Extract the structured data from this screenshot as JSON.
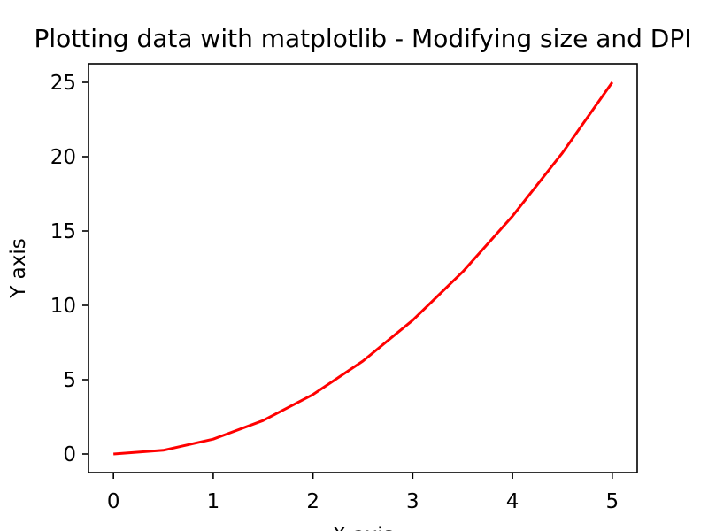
{
  "chart_data": {
    "type": "line",
    "title": "Plotting data with matplotlib - Modifying size and DPI",
    "xlabel": "X axis",
    "ylabel": "Y axis",
    "xlim": [
      -0.25,
      5.25
    ],
    "ylim": [
      -1.25,
      26.25
    ],
    "xticks": [
      "0",
      "1",
      "2",
      "3",
      "4",
      "5"
    ],
    "yticks": [
      "0",
      "5",
      "10",
      "15",
      "20",
      "25"
    ],
    "grid": false,
    "legend": "none",
    "series": [
      {
        "color": "#ff0000",
        "x": [
          0,
          0.5,
          1,
          1.5,
          2,
          2.5,
          3,
          3.5,
          4,
          4.5,
          5
        ],
        "y": [
          0,
          0.25,
          1,
          2.25,
          4,
          6.25,
          9,
          12.25,
          16,
          20.25,
          25
        ]
      }
    ]
  }
}
